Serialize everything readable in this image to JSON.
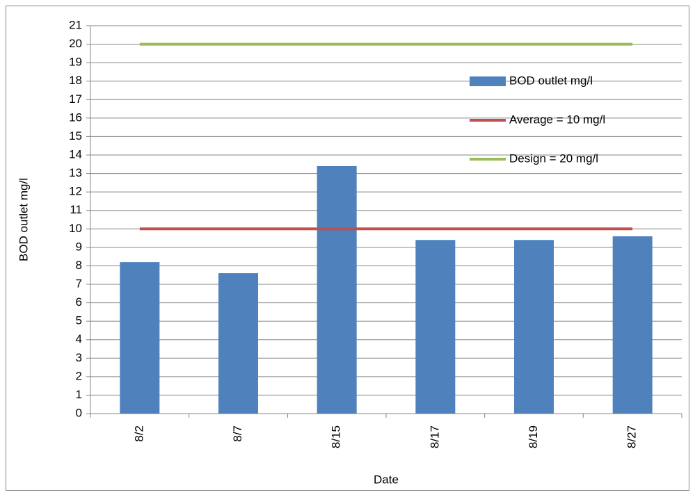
{
  "chart_data": {
    "type": "bar",
    "categories": [
      "8/2",
      "8/7",
      "8/15",
      "8/17",
      "8/19",
      "8/27"
    ],
    "series": [
      {
        "name": "BOD outlet mg/l",
        "type": "bar",
        "color": "#4f81bd",
        "values": [
          8.2,
          7.6,
          13.4,
          9.4,
          9.4,
          9.6
        ]
      },
      {
        "name": "Average = 10 mg/l",
        "type": "line",
        "color": "#c0504d",
        "values": [
          10,
          10,
          10,
          10,
          10,
          10
        ]
      },
      {
        "name": "Design = 20 mg/l",
        "type": "line",
        "color": "#9bbb59",
        "values": [
          20,
          20,
          20,
          20,
          20,
          20
        ]
      }
    ],
    "x_label": "Date",
    "y_label": "BOD outlet mg/l",
    "ylim": [
      0,
      21
    ],
    "yticks": [
      0,
      1,
      2,
      3,
      4,
      5,
      6,
      7,
      8,
      9,
      10,
      11,
      12,
      13,
      14,
      15,
      16,
      17,
      18,
      19,
      20,
      21
    ],
    "grid": true,
    "legend": "upper right"
  }
}
